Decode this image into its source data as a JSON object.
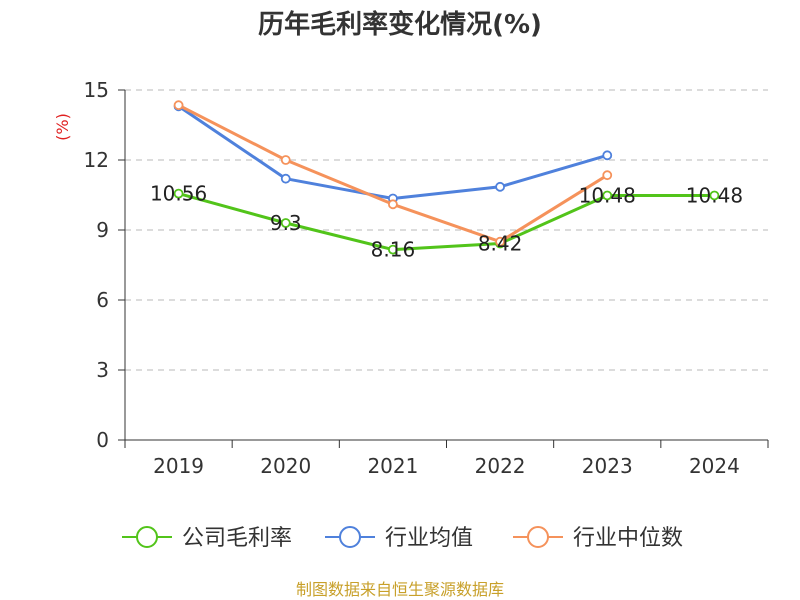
{
  "chart_data": {
    "type": "line",
    "title": "历年毛利率变化情况(%)",
    "ylabel": "(%)",
    "xlabel": "",
    "categories": [
      "2019",
      "2020",
      "2021",
      "2022",
      "2023",
      "2024"
    ],
    "ylim": [
      0,
      15
    ],
    "yticks": [
      0,
      3,
      6,
      9,
      12,
      15
    ],
    "grid": "horizontal-dashed",
    "legend_position": "bottom",
    "series": [
      {
        "name": "公司毛利率",
        "color": "#52c41a",
        "values": [
          10.56,
          9.3,
          8.16,
          8.42,
          10.48,
          10.48
        ],
        "data_labels": [
          "10.56",
          "9.3",
          "8.16",
          "8.42",
          "10.48",
          "10.48"
        ]
      },
      {
        "name": "行业均值",
        "color": "#4f81dc",
        "values": [
          14.3,
          11.2,
          10.35,
          10.85,
          12.2,
          null
        ]
      },
      {
        "name": "行业中位数",
        "color": "#f5925b",
        "values": [
          14.35,
          12.0,
          10.1,
          8.5,
          11.35,
          null
        ]
      }
    ]
  },
  "footer": {
    "source_text": "制图数据来自恒生聚源数据库"
  },
  "colors": {
    "ylabel": "#e02020",
    "footer": "#c8a02a",
    "grid": "#c8c8c8",
    "axis": "#333333"
  }
}
